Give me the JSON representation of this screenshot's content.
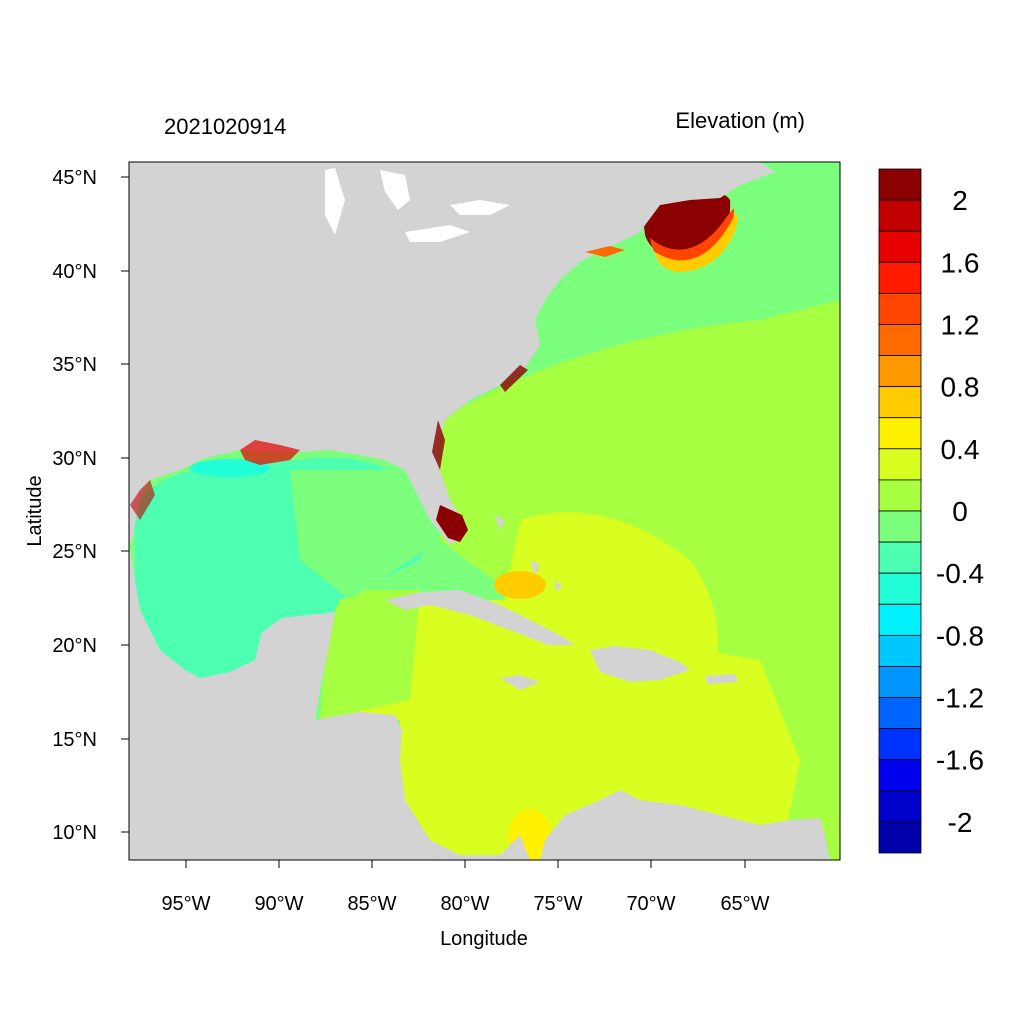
{
  "map": {
    "timestamp": "2021020914",
    "title": "Elevation (m)",
    "xlabel": "Longitude",
    "ylabel": "Latitude",
    "lat_ticks": [
      "45°N",
      "40°N",
      "35°N",
      "30°N",
      "25°N",
      "20°N",
      "15°N",
      "10°N"
    ],
    "lon_ticks": [
      "95°W",
      "90°W",
      "85°W",
      "80°W",
      "75°W",
      "70°W",
      "65°W"
    ],
    "land_color": "#d3d3d3",
    "region": "Gulf of Mexico, Caribbean Sea and western North Atlantic"
  },
  "colorbar": {
    "labels": [
      "2",
      "1.6",
      "1.2",
      "0.8",
      "0.4",
      "0",
      "-0.4",
      "-0.8",
      "-1.2",
      "-1.6",
      "-2"
    ],
    "colors": [
      "#8b0000",
      "#c00000",
      "#e60000",
      "#ff1a00",
      "#ff4500",
      "#ff6a00",
      "#ff9900",
      "#ffcc00",
      "#fff200",
      "#d8ff20",
      "#a6ff40",
      "#7cff7c",
      "#4dffb0",
      "#22ffd8",
      "#00f0ff",
      "#00c8ff",
      "#0096ff",
      "#0064ff",
      "#0032ff",
      "#0000ee",
      "#0000cc",
      "#0000aa"
    ]
  }
}
